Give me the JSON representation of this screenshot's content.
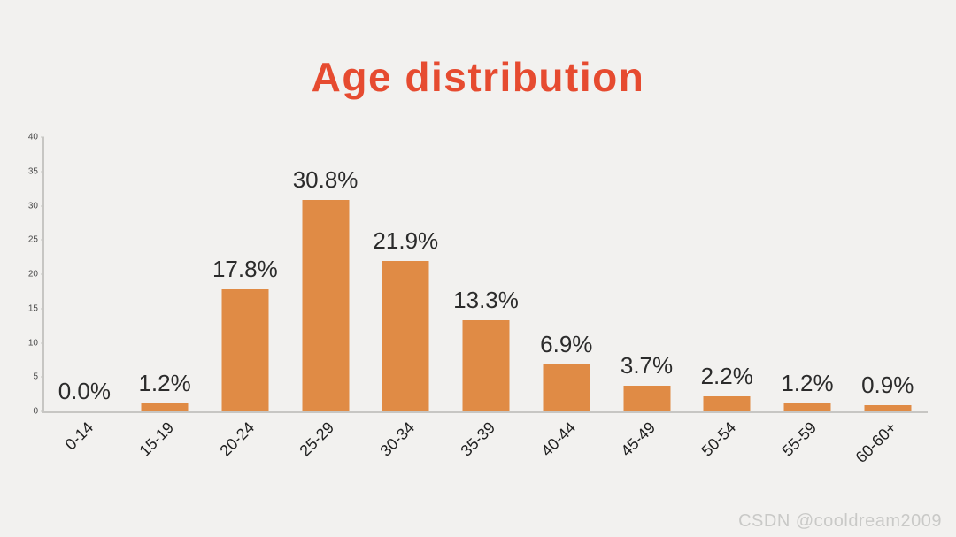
{
  "title": "Age distribution",
  "watermark": "CSDN @cooldream2009",
  "colors": {
    "background": "#f2f1ef",
    "title": "#e64b30",
    "bar": "#e08b45",
    "axis": "#c7c6c3",
    "bar_label": "#2b2b2b",
    "x_tick_label": "#1f1f1f",
    "y_tick_label": "#4a4a4a",
    "watermark": "#c9c9c7"
  },
  "chart_data": {
    "type": "bar",
    "title": "Age distribution",
    "categories": [
      "0-14",
      "15-19",
      "20-24",
      "25-29",
      "30-34",
      "35-39",
      "40-44",
      "45-49",
      "50-54",
      "55-59",
      "60-60+"
    ],
    "values": [
      0.0,
      1.2,
      17.8,
      30.8,
      21.9,
      13.3,
      6.9,
      3.7,
      2.2,
      1.2,
      0.9
    ],
    "data_labels": [
      "0.0%",
      "1.2%",
      "17.8%",
      "30.8%",
      "21.9%",
      "13.3%",
      "6.9%",
      "3.7%",
      "2.2%",
      "1.2%",
      "0.9%"
    ],
    "xlabel": "",
    "ylabel": "",
    "ylim": [
      0,
      40
    ],
    "yticks": [
      0,
      5,
      10,
      15,
      20,
      25,
      30,
      35,
      40
    ],
    "grid": false,
    "legend": false,
    "bar_color": "#e08b45"
  }
}
